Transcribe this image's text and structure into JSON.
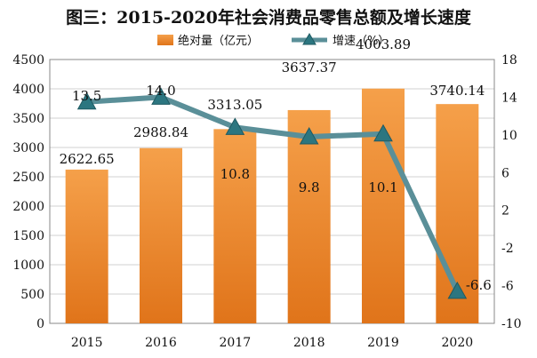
{
  "colors": {
    "bar_top": "#f5a04a",
    "bar_bottom": "#e0741a",
    "line": "#5a8f98",
    "marker": "#2c7680",
    "marker_edge": "#1f5a62",
    "grid": "#d0d0d0",
    "axis": "#888888"
  },
  "chart_data": {
    "type": "bar+line",
    "title": "图三：2015-2020年社会消费品零售总额及增长速度",
    "categories": [
      "2015",
      "2016",
      "2017",
      "2018",
      "2019",
      "2020"
    ],
    "series": [
      {
        "name": "绝对量（亿元）",
        "type": "bar",
        "axis": "left",
        "values": [
          2622.65,
          2988.84,
          3313.05,
          3637.37,
          4003.89,
          3740.14
        ],
        "labels": [
          "2622.65",
          "2988.84",
          "3313.05",
          "3637.37",
          "4003.89",
          "3740.14"
        ]
      },
      {
        "name": "增速（%）",
        "type": "line",
        "axis": "right",
        "values": [
          13.5,
          14.0,
          10.8,
          9.8,
          10.1,
          -6.6
        ],
        "labels": [
          "13.5",
          "14.0",
          "10.8",
          "9.8",
          "10.1",
          "-6.6"
        ]
      }
    ],
    "y_left": {
      "min": 0,
      "max": 4500,
      "step": 500,
      "ticks": [
        "0",
        "500",
        "1000",
        "1500",
        "2000",
        "2500",
        "3000",
        "3500",
        "4000",
        "4500"
      ]
    },
    "y_right": {
      "min": -10,
      "max": 18,
      "step": 4,
      "ticks": [
        "-10",
        "-6",
        "-2",
        "2",
        "6",
        "10",
        "14",
        "18"
      ]
    },
    "legend": {
      "position": "top-center",
      "entries": [
        "绝对量（亿元）",
        "增速（%）"
      ]
    },
    "grid": true
  }
}
